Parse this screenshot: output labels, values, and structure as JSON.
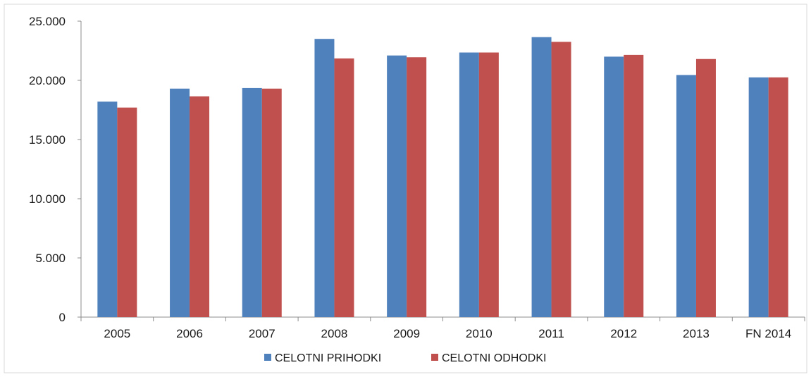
{
  "chart_data": {
    "type": "bar",
    "title": "",
    "xlabel": "",
    "ylabel": "",
    "categories": [
      "2005",
      "2006",
      "2007",
      "2008",
      "2009",
      "2010",
      "2011",
      "2012",
      "2013",
      "FN 2014"
    ],
    "series": [
      {
        "name": "CELOTNI PRIHODKI",
        "color": "#4F81BD",
        "values": [
          18200,
          19300,
          19350,
          23500,
          22100,
          22350,
          23650,
          22000,
          20450,
          20250
        ]
      },
      {
        "name": "CELOTNI ODHODKI",
        "color": "#C0504D",
        "values": [
          17700,
          18650,
          19300,
          21850,
          21950,
          22350,
          23250,
          22150,
          21800,
          20250
        ]
      }
    ],
    "ylim": [
      0,
      25000
    ],
    "yticks": [
      0,
      5000,
      10000,
      15000,
      20000,
      25000
    ],
    "ytick_labels": [
      "0",
      "5.000",
      "10.000",
      "15.000",
      "20.000",
      "25.000"
    ],
    "grid": false,
    "legend_position": "bottom"
  }
}
